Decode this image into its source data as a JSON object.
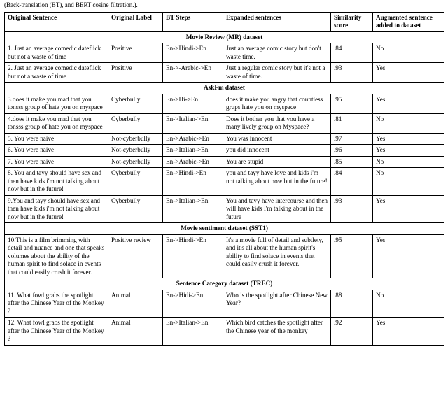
{
  "caption": "(Back-translation (BT), and BERT cosine filtration.).",
  "headers": {
    "c1": "Original Sentence",
    "c2": "Original Label",
    "c3": "BT Steps",
    "c4": "Expanded sentences",
    "c5": "Similarity score",
    "c6": "Augmented sentence added to dataset"
  },
  "sections": [
    {
      "title": "Movie Review (MR) dataset",
      "rows": [
        {
          "orig": "1. Just an average comedic dateflick but not a waste of time",
          "label": "Positive",
          "bt": "En->Hindi->En",
          "exp": "Just an average comic story but don't waste time.",
          "sim": ".84",
          "added": "No"
        },
        {
          "orig": "2. Just an average comedic dateflick but not a waste of time",
          "label": "Positive",
          "bt": "En->-Arabic->En",
          "exp": "Just a regular comic story but it's not a waste of time.",
          "sim": ".93",
          "added": "Yes"
        }
      ]
    },
    {
      "title": "AskFm dataset",
      "rows": [
        {
          "orig": "3.does it make you mad that you tonsss group of hate you on myspace",
          "label": "Cyberbully",
          "bt": "En->Hi->En",
          "exp": "does it make you angry that countless grups hate you on myspace",
          "sim": ".95",
          "added": "Yes"
        },
        {
          "orig": "4.does it make you mad that you tonsss group of hate you on myspace",
          "label": "Cyberbully",
          "bt": "En->Italian->En",
          "exp": "Does it bother you that you have a many lively group on Myspace?",
          "sim": ".81",
          "added": "No"
        },
        {
          "orig": "5. You were naive",
          "label": "Not-cyberbully",
          "bt": "En->Arabic->En",
          "exp": "You was innocent",
          "sim": ".97",
          "added": "Yes"
        },
        {
          "orig": "6. You were naive",
          "label": "Not-cyberbully",
          "bt": "En->Italian->En",
          "exp": "you did innocent",
          "sim": ".96",
          "added": "Yes"
        },
        {
          "orig": "7. You were naive",
          "label": "Not-cyberbully",
          "bt": "En->Arabic->En",
          "exp": "You are stupid",
          "sim": ".85",
          "added": "No"
        },
        {
          "orig": "8. You and tayy should have sex and then have kids i'm not talking about now but in the future!",
          "label": "Cyberbully",
          "bt": "En->Hindi->En",
          "exp": "you and tayy have love and kids i'm not talking about now but in the future!",
          "sim": ".84",
          "added": "No"
        },
        {
          "orig": "9.You and tayy should have sex and then have kids i'm not talking about now but in the future!",
          "label": "Cyberbully",
          "bt": "En->Italian->En",
          "exp": "You and tayy have intercourse and then will have kids I'm talking about in the future",
          "sim": ".93",
          "added": "Yes"
        }
      ]
    },
    {
      "title": "Movie sentiment dataset (SST1)",
      "rows": [
        {
          "orig": "10.This is a film brimming with detail and nuance and one that speaks volumes about the ability of the human spirit to find solace in events that could easily crush it forever.",
          "label": "Positive review",
          "bt": "En->Hindi->En",
          "exp": "It's a movie full of detail and subtlety, and it's all about the human spirit's ability to find solace in events that could easily crush it forever.",
          "sim": ".95",
          "added": "Yes"
        }
      ]
    },
    {
      "title": "Sentence Category dataset (TREC)",
      "rows": [
        {
          "orig": "11. What fowl grabs the spotlight after the Chinese Year of the Monkey ?",
          "label": "Animal",
          "bt": "En->Hidi->En",
          "exp": "Who is the spotlight after Chinese New Year?",
          "sim": ".88",
          "added": "No"
        },
        {
          "orig": "12. What fowl grabs the spotlight after the Chinese Year of the Monkey ?",
          "label": "Animal",
          "bt": "En->Italian->En",
          "exp": "Which bird catches the spotlight after the Chinese year of the monkey",
          "sim": ".92",
          "added": "Yes"
        }
      ]
    }
  ]
}
